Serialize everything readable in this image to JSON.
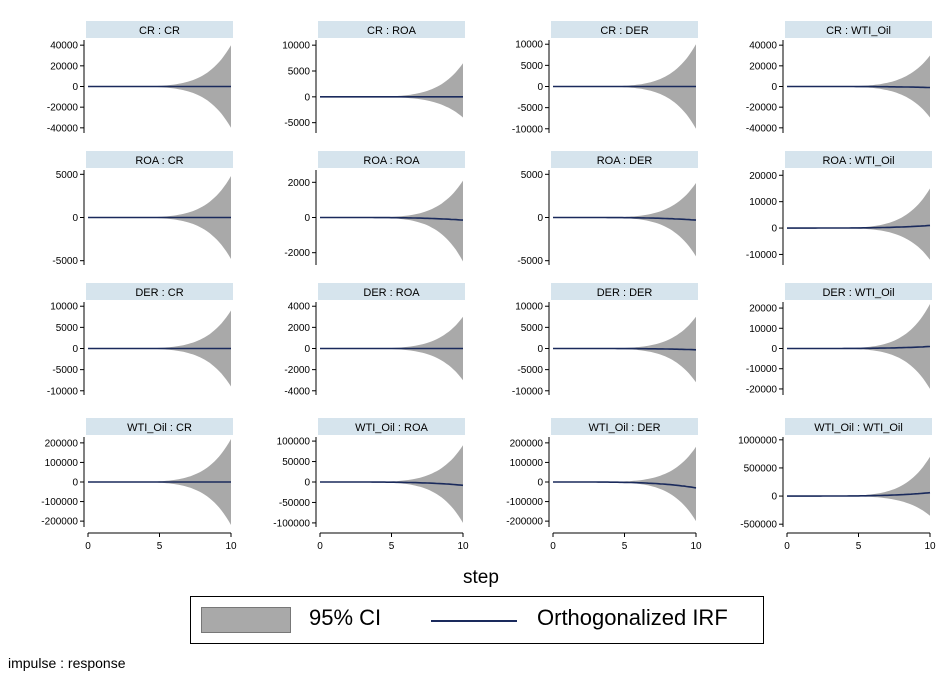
{
  "note": "impulse : response",
  "legend": {
    "ci_label": "95% CI",
    "irf_label": "Orthogonalized IRF"
  },
  "xlabel": "step",
  "colors": {
    "ci_fill": "#a9a9a9",
    "irf_line": "#1a2a5c",
    "title_bg": "#d6e4ed"
  },
  "chart_data": {
    "type": "area",
    "xlim": [
      0,
      10
    ],
    "xticks": [
      0,
      5,
      10
    ],
    "grid": false,
    "legend_position": "bottom",
    "panels": [
      {
        "title": "CR : CR",
        "yticks": [
          "40000",
          "20000",
          "0",
          "-20000",
          "-40000"
        ],
        "ylim": [
          -45000,
          45000
        ],
        "ci_end": [
          -40000,
          40000
        ],
        "irf_end": 0
      },
      {
        "title": "CR : ROA",
        "yticks": [
          "10000",
          "5000",
          "0",
          "-5000"
        ],
        "ylim": [
          -7000,
          11000
        ],
        "ci_end": [
          -4000,
          6500
        ],
        "irf_end": 0
      },
      {
        "title": "CR : DER",
        "yticks": [
          "10000",
          "5000",
          "0",
          "-5000",
          "-10000"
        ],
        "ylim": [
          -11000,
          11000
        ],
        "ci_end": [
          -10000,
          10000
        ],
        "irf_end": 0
      },
      {
        "title": "CR : WTI_Oil",
        "yticks": [
          "40000",
          "20000",
          "0",
          "-20000",
          "-40000"
        ],
        "ylim": [
          -45000,
          45000
        ],
        "ci_end": [
          -30000,
          30000
        ],
        "irf_end": -1000
      },
      {
        "title": "ROA : CR",
        "yticks": [
          "5000",
          "0",
          "-5000"
        ],
        "ylim": [
          -5500,
          5500
        ],
        "ci_end": [
          -4800,
          4800
        ],
        "irf_end": 0
      },
      {
        "title": "ROA : ROA",
        "yticks": [
          "2000",
          "0",
          "-2000"
        ],
        "ylim": [
          -2700,
          2700
        ],
        "ci_end": [
          -2500,
          2100
        ],
        "irf_end": -150
      },
      {
        "title": "ROA : DER",
        "yticks": [
          "5000",
          "0",
          "-5000"
        ],
        "ylim": [
          -5500,
          5500
        ],
        "ci_end": [
          -4500,
          4000
        ],
        "irf_end": -300
      },
      {
        "title": "ROA : WTI_Oil",
        "yticks": [
          "20000",
          "10000",
          "0",
          "-10000"
        ],
        "ylim": [
          -14000,
          22000
        ],
        "ci_end": [
          -12000,
          15000
        ],
        "irf_end": 1000
      },
      {
        "title": "DER : CR",
        "yticks": [
          "10000",
          "5000",
          "0",
          "-5000",
          "-10000"
        ],
        "ylim": [
          -11000,
          11000
        ],
        "ci_end": [
          -9000,
          9000
        ],
        "irf_end": 0
      },
      {
        "title": "DER : ROA",
        "yticks": [
          "4000",
          "2000",
          "0",
          "-2000",
          "-4000"
        ],
        "ylim": [
          -4400,
          4400
        ],
        "ci_end": [
          -3000,
          3000
        ],
        "irf_end": 0
      },
      {
        "title": "DER : DER",
        "yticks": [
          "10000",
          "5000",
          "0",
          "-5000",
          "-10000"
        ],
        "ylim": [
          -11000,
          11000
        ],
        "ci_end": [
          -8000,
          7500
        ],
        "irf_end": -300
      },
      {
        "title": "DER : WTI_Oil",
        "yticks": [
          "20000",
          "10000",
          "0",
          "-10000",
          "-20000"
        ],
        "ylim": [
          -23000,
          23000
        ],
        "ci_end": [
          -20000,
          22000
        ],
        "irf_end": 1000
      },
      {
        "title": "WTI_Oil : CR",
        "yticks": [
          "200000",
          "100000",
          "0",
          "-100000",
          "-200000"
        ],
        "ylim": [
          -230000,
          230000
        ],
        "ci_end": [
          -220000,
          220000
        ],
        "irf_end": 0
      },
      {
        "title": "WTI_Oil : ROA",
        "yticks": [
          "100000",
          "50000",
          "0",
          "-50000",
          "-100000"
        ],
        "ylim": [
          -110000,
          110000
        ],
        "ci_end": [
          -100000,
          90000
        ],
        "irf_end": -8000
      },
      {
        "title": "WTI_Oil : DER",
        "yticks": [
          "200000",
          "100000",
          "0",
          "-100000",
          "-200000"
        ],
        "ylim": [
          -230000,
          230000
        ],
        "ci_end": [
          -200000,
          180000
        ],
        "irf_end": -30000
      },
      {
        "title": "WTI_Oil : WTI_Oil",
        "yticks": [
          "1000000",
          "500000",
          "0",
          "-500000"
        ],
        "ylim": [
          -550000,
          1050000
        ],
        "ci_end": [
          -350000,
          700000
        ],
        "irf_end": 60000
      }
    ]
  }
}
